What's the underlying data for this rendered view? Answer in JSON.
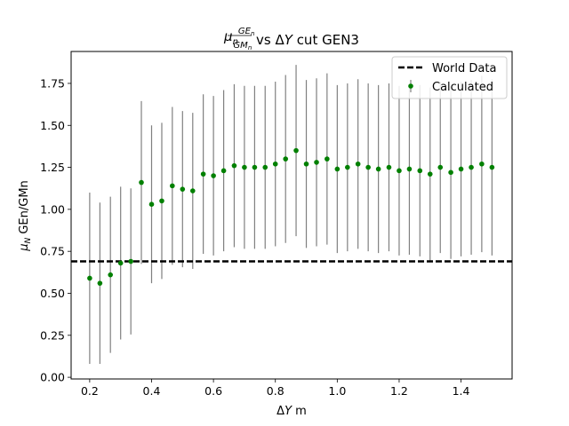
{
  "chart_data": {
    "type": "scatter",
    "title": "μ_n GE_n/GM_n vs ΔY cut GEN3",
    "title_parts": {
      "mu": "μ",
      "mu_sub": "n",
      "num": "GE",
      "num_sub": "n",
      "den": "GM",
      "den_sub": "n",
      "rest": " vs Δ",
      "y_sym": "Y",
      "tail": " cut GEN3"
    },
    "xlabel": "ΔY m",
    "xlabel_parts": {
      "delta": "Δ",
      "sym": "Y",
      "unit": " m"
    },
    "ylabel": "μ_N GEn/GMn",
    "ylabel_parts": {
      "mu": "μ",
      "sub": "N",
      "rest": " GEn/GMn"
    },
    "xlim": [
      0.14,
      1.565
    ],
    "ylim": [
      -0.01,
      1.94
    ],
    "x_ticks": [
      0.2,
      0.4,
      0.6,
      0.8,
      1.0,
      1.2,
      1.4
    ],
    "y_ticks": [
      0.0,
      0.25,
      0.5,
      0.75,
      1.0,
      1.25,
      1.5,
      1.75
    ],
    "reference_line": {
      "name": "World Data",
      "value": 0.69,
      "style": "dashed",
      "color": "#000000"
    },
    "series": [
      {
        "name": "Calculated",
        "color": "#008000",
        "error_color": "#808080",
        "x": [
          0.2,
          0.233,
          0.267,
          0.3,
          0.333,
          0.367,
          0.4,
          0.433,
          0.467,
          0.5,
          0.533,
          0.567,
          0.6,
          0.633,
          0.667,
          0.7,
          0.733,
          0.767,
          0.8,
          0.833,
          0.867,
          0.9,
          0.933,
          0.967,
          1.0,
          1.033,
          1.067,
          1.1,
          1.133,
          1.167,
          1.2,
          1.233,
          1.267,
          1.3,
          1.333,
          1.367,
          1.4,
          1.433,
          1.467,
          1.5
        ],
        "y": [
          0.59,
          0.56,
          0.61,
          0.68,
          0.69,
          1.16,
          1.03,
          1.05,
          1.14,
          1.12,
          1.11,
          1.21,
          1.2,
          1.23,
          1.26,
          1.25,
          1.25,
          1.25,
          1.27,
          1.3,
          1.35,
          1.27,
          1.28,
          1.3,
          1.24,
          1.25,
          1.27,
          1.25,
          1.24,
          1.25,
          1.23,
          1.24,
          1.23,
          1.21,
          1.25,
          1.22,
          1.24,
          1.25,
          1.27,
          1.25
        ],
        "err": [
          0.51,
          0.48,
          0.465,
          0.455,
          0.435,
          0.485,
          0.47,
          0.465,
          0.47,
          0.465,
          0.465,
          0.475,
          0.475,
          0.48,
          0.485,
          0.485,
          0.485,
          0.485,
          0.49,
          0.5,
          0.51,
          0.5,
          0.5,
          0.51,
          0.5,
          0.5,
          0.505,
          0.5,
          0.5,
          0.5,
          0.505,
          0.51,
          0.51,
          0.515,
          0.51,
          0.515,
          0.52,
          0.52,
          0.525,
          0.525
        ]
      }
    ],
    "legend": {
      "placement": "top-right",
      "entries": [
        "World Data",
        "Calculated"
      ]
    }
  }
}
